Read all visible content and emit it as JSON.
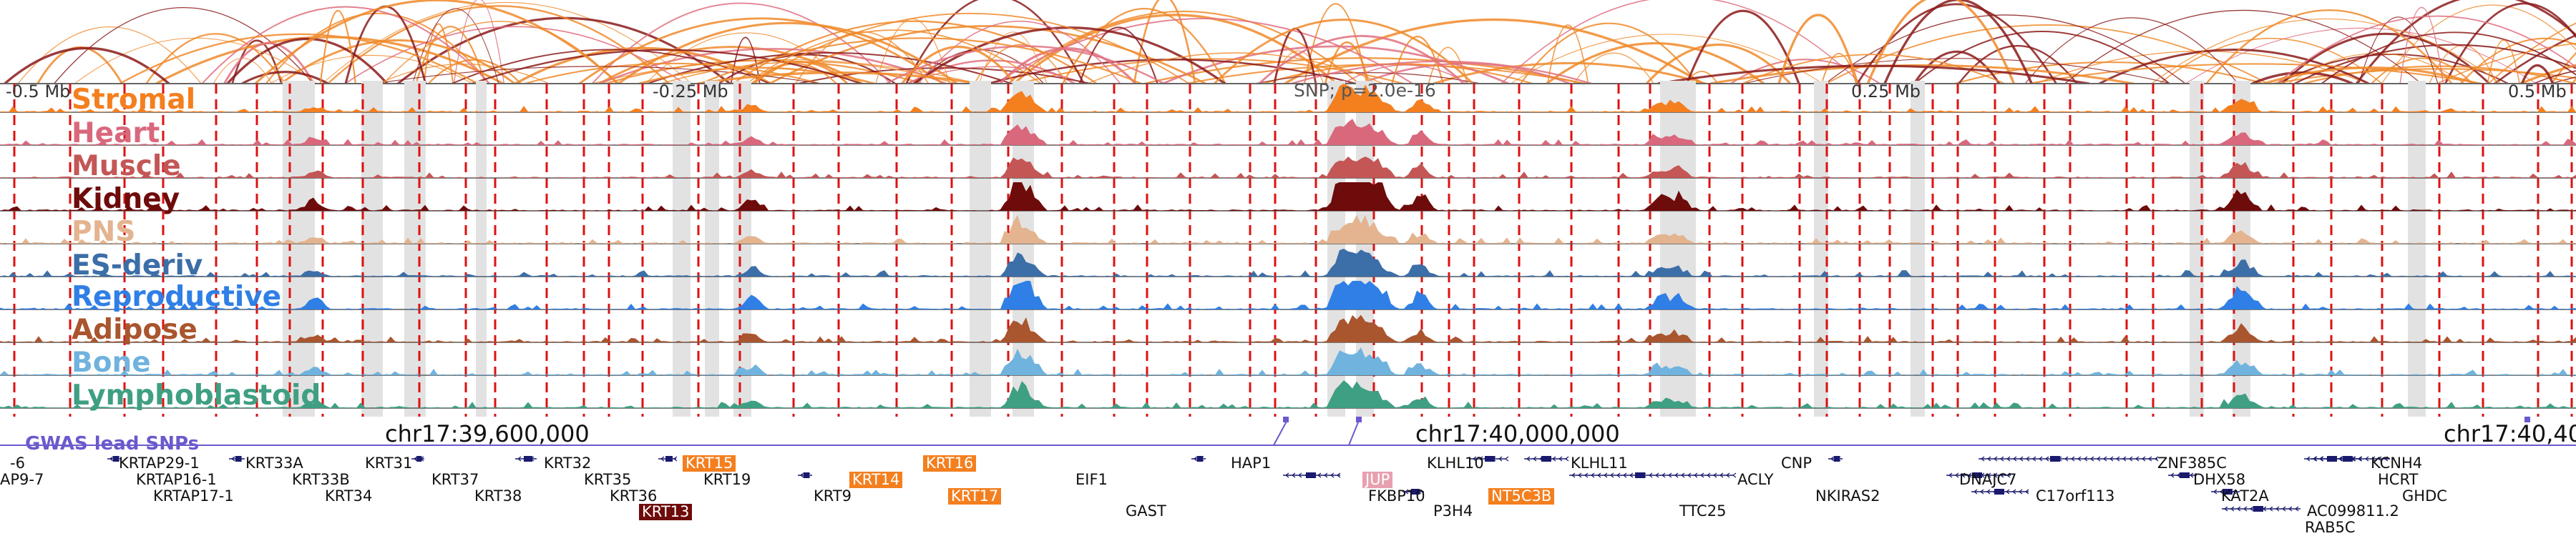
{
  "axis": {
    "tick_labels": [
      "-0.5 Mb",
      "-0.25 Mb",
      "0.25 Mb",
      "0.5 Mb"
    ],
    "snp_label": "SNP; p=2.0e-16",
    "coordinates": [
      "chr17:39,600,000",
      "chr17:40,000,000",
      "chr17:40,40"
    ],
    "gwas_label": "GWAS lead SNPs"
  },
  "tracks": [
    {
      "name": "Stromal",
      "color": "#f47f1f"
    },
    {
      "name": "Heart",
      "color": "#d9687c"
    },
    {
      "name": "Muscle",
      "color": "#c45656"
    },
    {
      "name": "Kidney",
      "color": "#6e0b0b"
    },
    {
      "name": "PNS",
      "color": "#e3b48f"
    },
    {
      "name": "ES-deriv",
      "color": "#3c6ea8"
    },
    {
      "name": "Reproductive",
      "color": "#2f7fe6"
    },
    {
      "name": "Adipose",
      "color": "#a9552e"
    },
    {
      "name": "Bone",
      "color": "#6fb3de"
    },
    {
      "name": "Lymphoblastoid",
      "color": "#3f9f83"
    }
  ],
  "genes": [
    {
      "name": "-6",
      "style": "plain"
    },
    {
      "name": "AP9-7",
      "style": "plain"
    },
    {
      "name": "KRTAP29-1",
      "style": "plain"
    },
    {
      "name": "KRTAP16-1",
      "style": "plain"
    },
    {
      "name": "KRTAP17-1",
      "style": "plain"
    },
    {
      "name": "KRT33A",
      "style": "plain"
    },
    {
      "name": "KRT33B",
      "style": "plain"
    },
    {
      "name": "KRT34",
      "style": "plain"
    },
    {
      "name": "KRT31",
      "style": "plain"
    },
    {
      "name": "KRT37",
      "style": "plain"
    },
    {
      "name": "KRT38",
      "style": "plain"
    },
    {
      "name": "KRT32",
      "style": "plain"
    },
    {
      "name": "KRT35",
      "style": "plain"
    },
    {
      "name": "KRT36",
      "style": "plain"
    },
    {
      "name": "KRT13",
      "style": "dark"
    },
    {
      "name": "KRT15",
      "style": "orange"
    },
    {
      "name": "KRT19",
      "style": "plain"
    },
    {
      "name": "KRT9",
      "style": "plain"
    },
    {
      "name": "KRT14",
      "style": "orange"
    },
    {
      "name": "KRT16",
      "style": "orange"
    },
    {
      "name": "KRT17",
      "style": "orange"
    },
    {
      "name": "EIF1",
      "style": "plain"
    },
    {
      "name": "GAST",
      "style": "plain"
    },
    {
      "name": "HAP1",
      "style": "plain"
    },
    {
      "name": "JUP",
      "style": "pink"
    },
    {
      "name": "FKBP10",
      "style": "plain"
    },
    {
      "name": "P3H4",
      "style": "plain"
    },
    {
      "name": "KLHL10",
      "style": "plain"
    },
    {
      "name": "NT5C3B",
      "style": "orange"
    },
    {
      "name": "KLHL11",
      "style": "plain"
    },
    {
      "name": "ACLY",
      "style": "plain"
    },
    {
      "name": "TTC25",
      "style": "plain"
    },
    {
      "name": "CNP",
      "style": "plain"
    },
    {
      "name": "NKIRAS2",
      "style": "plain"
    },
    {
      "name": "DNAJC7",
      "style": "plain"
    },
    {
      "name": "C17orf113",
      "style": "plain"
    },
    {
      "name": "ZNF385C",
      "style": "plain"
    },
    {
      "name": "DHX58",
      "style": "plain"
    },
    {
      "name": "KAT2A",
      "style": "plain"
    },
    {
      "name": "AC099811.2",
      "style": "plain"
    },
    {
      "name": "RAB5C",
      "style": "plain"
    },
    {
      "name": "KCNH4",
      "style": "plain"
    },
    {
      "name": "HCRT",
      "style": "plain"
    },
    {
      "name": "GHDC",
      "style": "plain"
    }
  ],
  "colors": {
    "arc_orange": "#f08a2a",
    "arc_dark": "#8b1a1a",
    "arc_pink": "#e07080",
    "red_dash": "#dd1111",
    "grey_band": "#e2e2e2",
    "gwas": "#6a5acd",
    "gene_dark": "#1a1a6e"
  }
}
